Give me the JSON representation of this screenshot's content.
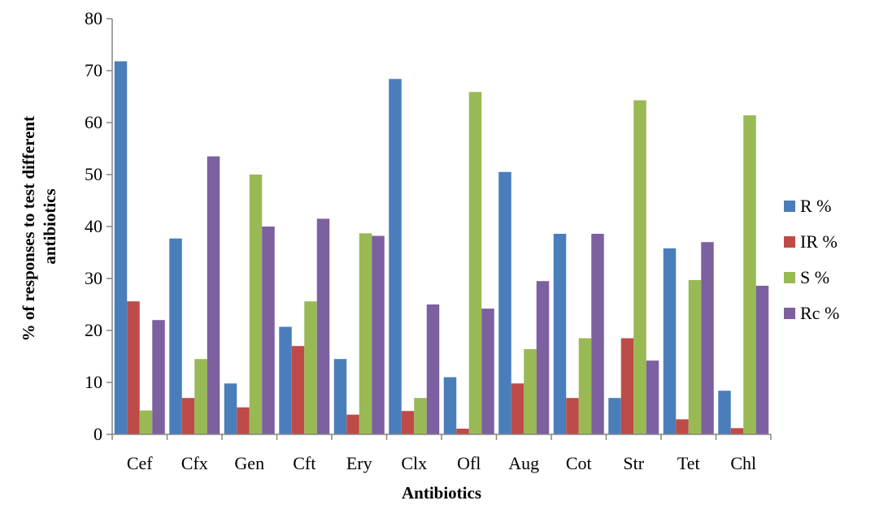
{
  "chart_data": {
    "type": "bar",
    "xlabel": "Antibiotics",
    "ylabel_lines": [
      "% of responses to test different",
      "antibiotics"
    ],
    "ylim": [
      0,
      80
    ],
    "yticks": [
      0,
      10,
      20,
      30,
      40,
      50,
      60,
      70,
      80
    ],
    "grid": false,
    "legend_position": "right",
    "categories": [
      "Cef",
      "Cfx",
      "Gen",
      "Cft",
      "Ery",
      "Clx",
      "Ofl",
      "Aug",
      "Cot",
      "Str",
      "Tet",
      "Chl"
    ],
    "series": [
      {
        "name": "R %",
        "color": "#4a7ebb",
        "values": [
          71.8,
          37.7,
          9.8,
          20.7,
          14.5,
          68.4,
          11.0,
          50.5,
          38.6,
          7.0,
          35.8,
          8.4
        ]
      },
      {
        "name": "IR %",
        "color": "#be4b48",
        "values": [
          25.6,
          7.0,
          5.2,
          17.0,
          3.8,
          4.5,
          1.1,
          9.8,
          7.0,
          18.5,
          2.9,
          1.2
        ]
      },
      {
        "name": "S %",
        "color": "#98b954",
        "values": [
          4.6,
          14.5,
          50.0,
          25.6,
          38.7,
          7.0,
          65.9,
          16.4,
          18.5,
          64.3,
          29.7,
          61.4
        ]
      },
      {
        "name": "Rc %",
        "color": "#7d60a0",
        "values": [
          22.0,
          53.5,
          40.0,
          41.5,
          38.2,
          25.0,
          24.2,
          29.5,
          38.6,
          14.2,
          37.0,
          28.6
        ]
      }
    ]
  }
}
